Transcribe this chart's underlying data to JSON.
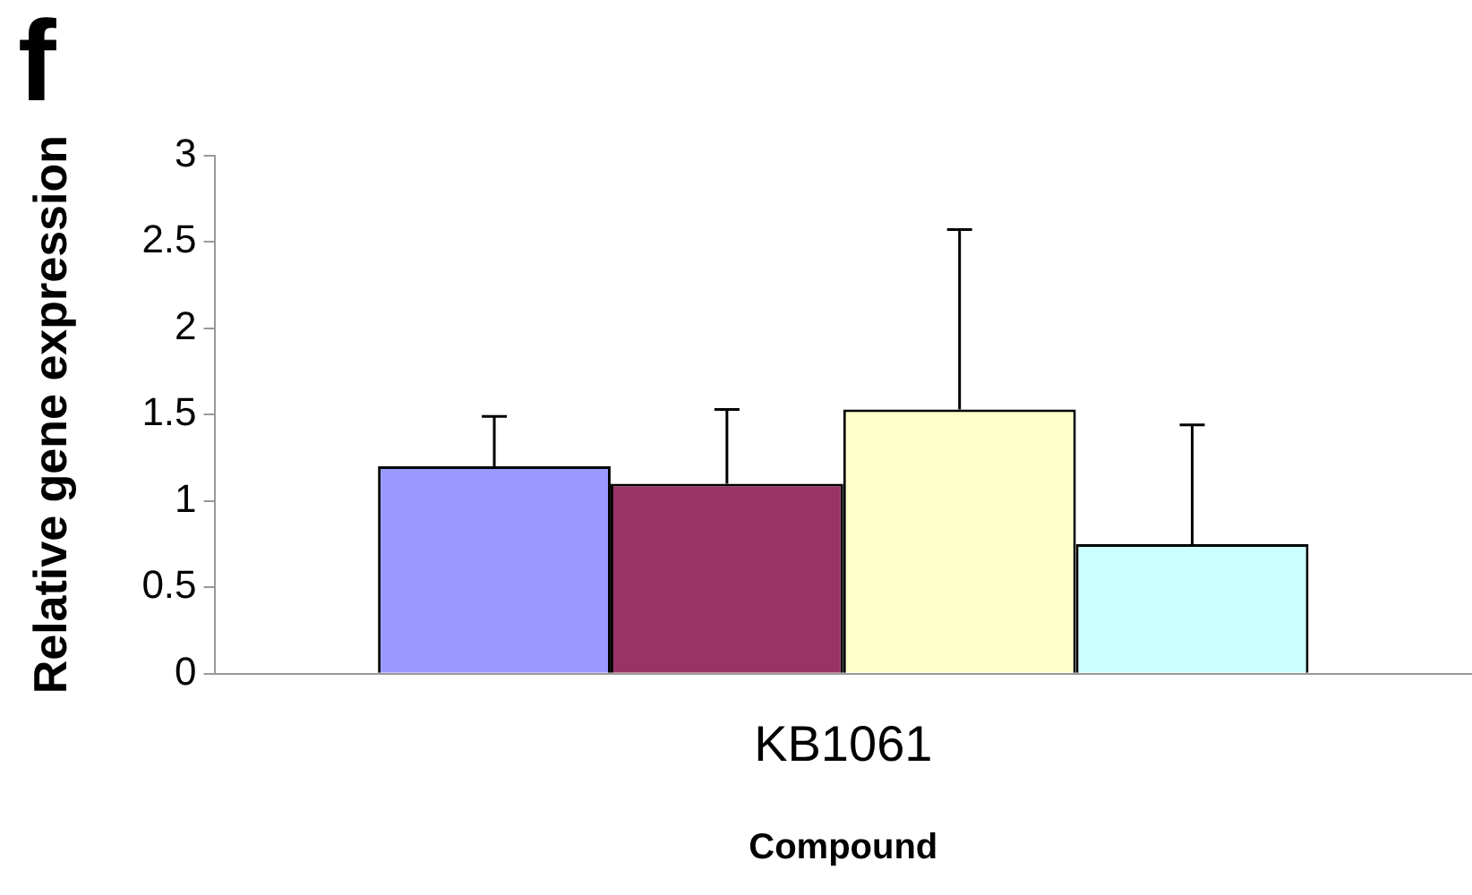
{
  "chart_data": {
    "type": "bar",
    "title": "f",
    "xlabel": "Compound",
    "ylabel": "Relative gene expression",
    "categories": [
      "KB1061"
    ],
    "series": [
      {
        "color": "#9999ff",
        "values": [
          1.2
        ],
        "errors": [
          [
            1.2,
            1.49
          ]
        ]
      },
      {
        "color": "#993366",
        "values": [
          1.1
        ],
        "errors": [
          [
            1.1,
            1.53
          ]
        ]
      },
      {
        "color": "#ffffcc",
        "values": [
          1.53
        ],
        "errors": [
          [
            1.53,
            2.57
          ]
        ]
      },
      {
        "color": "#ccffff",
        "values": [
          0.75
        ],
        "errors": [
          [
            0.75,
            1.44
          ]
        ]
      }
    ],
    "ylim": [
      0,
      3
    ],
    "yticks": [
      0,
      0.5,
      1,
      1.5,
      2,
      2.5,
      3
    ],
    "grid": false,
    "legend": false
  }
}
